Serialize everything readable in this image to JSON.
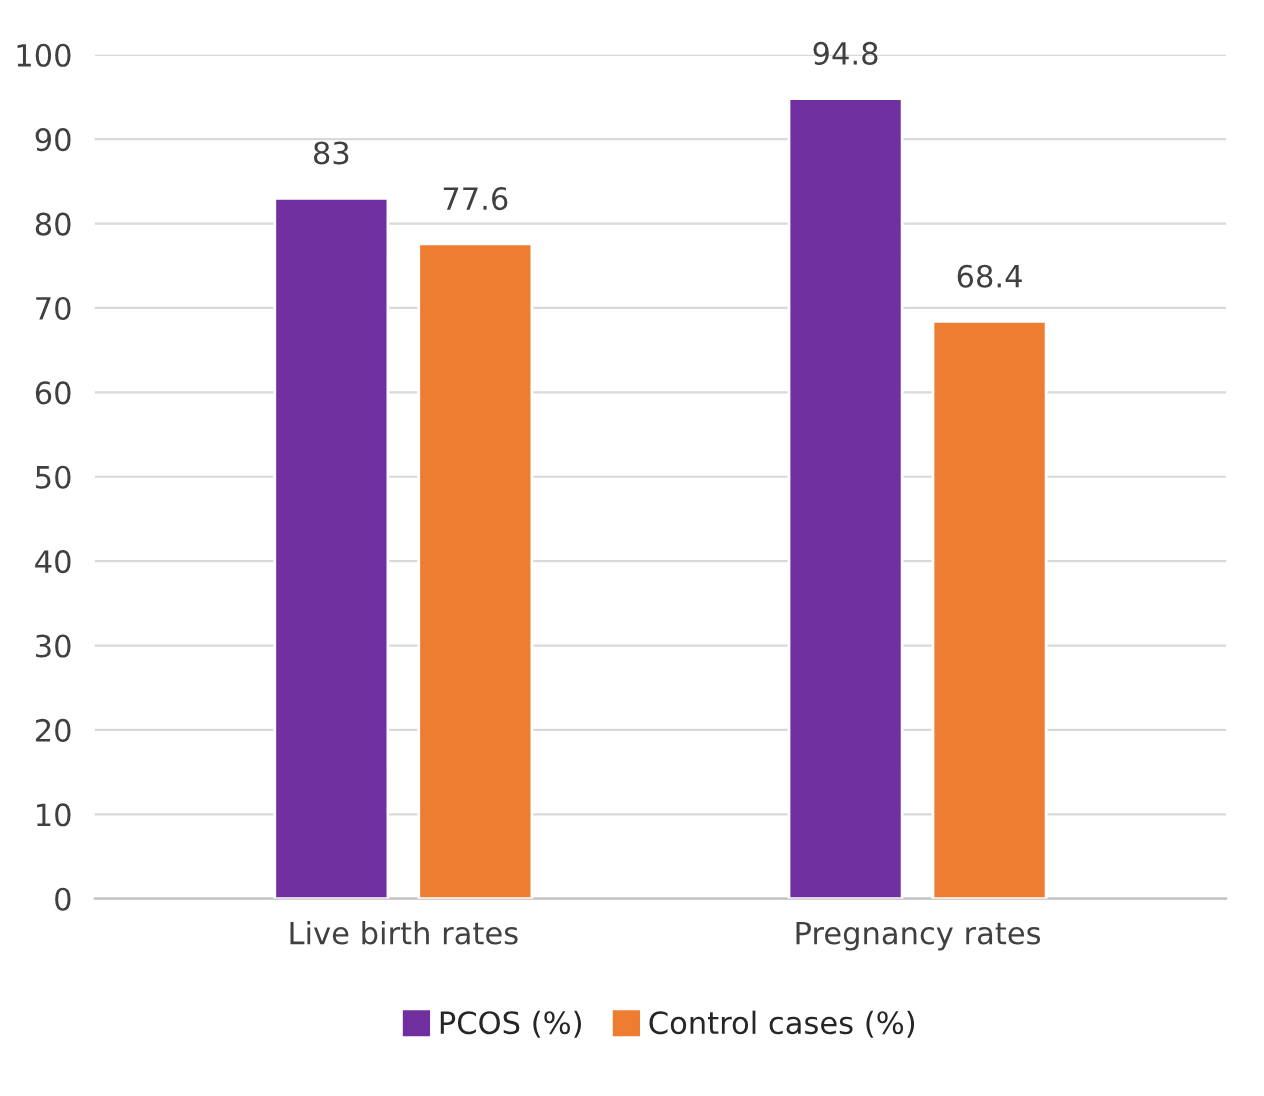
{
  "chart_data": {
    "type": "bar",
    "categories": [
      "Live birth rates",
      "Pregnancy rates"
    ],
    "series": [
      {
        "name": "PCOS (%)",
        "color": "#7030a0",
        "values": [
          83,
          94.8
        ]
      },
      {
        "name": "Control cases (%)",
        "color": "#ed7d31",
        "values": [
          77.6,
          68.4
        ]
      }
    ],
    "ylim": [
      0,
      100
    ],
    "yticks": [
      0,
      10,
      20,
      30,
      40,
      50,
      60,
      70,
      80,
      90,
      100
    ],
    "grid": "y",
    "legend": "bottom",
    "data_labels": true
  }
}
